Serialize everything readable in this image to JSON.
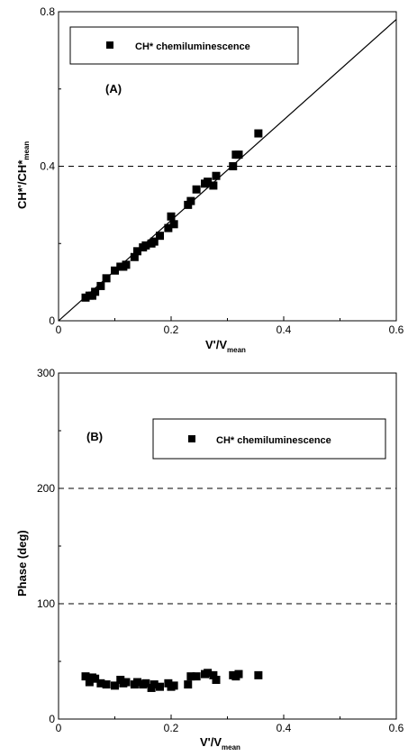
{
  "chart_data": [
    {
      "type": "scatter",
      "panel_label": "(A)",
      "xlabel_main": "V'/V",
      "xlabel_sub": "mean",
      "ylabel_main": "CH*'/CH*",
      "ylabel_sub": "mean",
      "xlim": [
        0,
        0.6
      ],
      "ylim": [
        0,
        0.8
      ],
      "xticks": [
        "0",
        "0.2",
        "0.4",
        "0.6"
      ],
      "yticks": [
        "0",
        "0.4",
        "0.8"
      ],
      "hlines": [
        0.4
      ],
      "grid": false,
      "legend_position": "top",
      "series": [
        {
          "name": "CH* chemiluminescence",
          "x": [
            0.048,
            0.055,
            0.06,
            0.065,
            0.075,
            0.085,
            0.1,
            0.11,
            0.115,
            0.12,
            0.135,
            0.14,
            0.15,
            0.155,
            0.165,
            0.17,
            0.18,
            0.195,
            0.2,
            0.205,
            0.23,
            0.235,
            0.245,
            0.26,
            0.265,
            0.275,
            0.28,
            0.31,
            0.315,
            0.32,
            0.355
          ],
          "y": [
            0.06,
            0.065,
            0.065,
            0.075,
            0.09,
            0.11,
            0.13,
            0.14,
            0.14,
            0.145,
            0.165,
            0.18,
            0.19,
            0.195,
            0.2,
            0.205,
            0.22,
            0.24,
            0.27,
            0.25,
            0.3,
            0.31,
            0.34,
            0.355,
            0.36,
            0.35,
            0.375,
            0.4,
            0.43,
            0.43,
            0.485
          ]
        }
      ],
      "fit_line": {
        "x": [
          0,
          0.6
        ],
        "y": [
          0,
          0.78
        ]
      }
    },
    {
      "type": "scatter",
      "panel_label": "(B)",
      "xlabel_main": "V'/V",
      "xlabel_sub": "mean",
      "ylabel": "Phase (deg)",
      "xlim": [
        0,
        0.6
      ],
      "ylim": [
        0,
        300
      ],
      "xticks": [
        "0",
        "0.2",
        "0.4",
        "0.6"
      ],
      "yticks": [
        "0",
        "100",
        "200",
        "300"
      ],
      "hlines": [
        100,
        200
      ],
      "grid": false,
      "legend_position": "top-right",
      "series": [
        {
          "name": "CH* chemiluminescence",
          "x": [
            0.048,
            0.055,
            0.06,
            0.065,
            0.075,
            0.085,
            0.1,
            0.11,
            0.115,
            0.12,
            0.135,
            0.14,
            0.15,
            0.155,
            0.165,
            0.17,
            0.18,
            0.195,
            0.2,
            0.205,
            0.23,
            0.235,
            0.245,
            0.26,
            0.265,
            0.275,
            0.28,
            0.31,
            0.315,
            0.32,
            0.355
          ],
          "y": [
            37,
            32,
            36,
            35,
            31,
            30,
            29,
            34,
            31,
            32,
            30,
            32,
            30,
            31,
            27,
            30,
            28,
            31,
            28,
            29,
            30,
            37,
            37,
            39,
            40,
            38,
            34,
            38,
            37,
            39,
            38
          ]
        }
      ]
    }
  ]
}
